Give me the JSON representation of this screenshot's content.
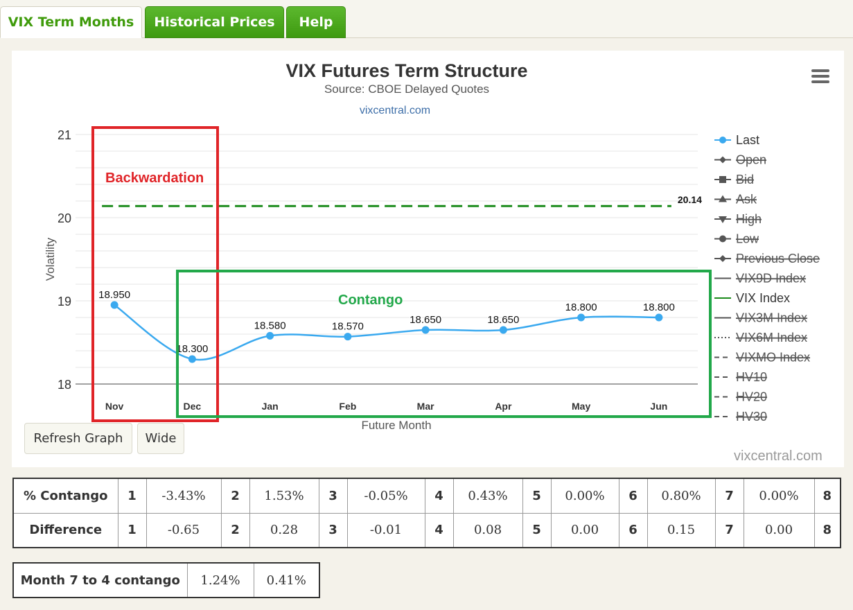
{
  "tabs": [
    {
      "label": "VIX Term Months"
    },
    {
      "label": "Historical Prices"
    },
    {
      "label": "Help"
    }
  ],
  "chart_data": {
    "type": "line",
    "title": "VIX Futures Term Structure",
    "subtitle": "Source: CBOE Delayed Quotes",
    "credit_top": "vixcentral.com",
    "credit_bottom": "vixcentral.com",
    "xlabel": "Future Month",
    "ylabel": "Volatility",
    "categories": [
      "Nov",
      "Dec",
      "Jan",
      "Feb",
      "Mar",
      "Apr",
      "May",
      "Jun"
    ],
    "ylim": [
      18,
      21
    ],
    "yticks": [
      "21",
      "20",
      "19",
      "18"
    ],
    "series": [
      {
        "name": "Last",
        "values": [
          18.95,
          18.3,
          18.58,
          18.57,
          18.65,
          18.65,
          18.8,
          18.8
        ],
        "labels": [
          "18.950",
          "18.300",
          "18.580",
          "18.570",
          "18.650",
          "18.650",
          "18.800",
          "18.800"
        ],
        "color": "#3aa9ef"
      },
      {
        "name": "VIX Index",
        "value": 20.14,
        "label": "20.14",
        "color": "#1a8a1a",
        "dashed": true
      }
    ],
    "legend_position": "right",
    "legend": [
      {
        "label": "Last",
        "active": true,
        "symbol": "dot-line",
        "color": "#3aa9ef"
      },
      {
        "label": "Open",
        "active": false,
        "symbol": "diamond"
      },
      {
        "label": "Bid",
        "active": false,
        "symbol": "square"
      },
      {
        "label": "Ask",
        "active": false,
        "symbol": "triangle-up"
      },
      {
        "label": "High",
        "active": false,
        "symbol": "triangle-down"
      },
      {
        "label": "Low",
        "active": false,
        "symbol": "circle"
      },
      {
        "label": "Previous Close",
        "active": false,
        "symbol": "diamond"
      },
      {
        "label": "VIX9D Index",
        "active": false,
        "symbol": "line"
      },
      {
        "label": "VIX Index",
        "active": true,
        "symbol": "line",
        "color": "#1a8a1a"
      },
      {
        "label": "VIX3M Index",
        "active": false,
        "symbol": "line"
      },
      {
        "label": "VIX6M Index",
        "active": false,
        "symbol": "dotted"
      },
      {
        "label": "VIXMO Index",
        "active": false,
        "symbol": "dashed"
      },
      {
        "label": "HV10",
        "active": false,
        "symbol": "dashed"
      },
      {
        "label": "HV20",
        "active": false,
        "symbol": "dashed"
      },
      {
        "label": "HV30",
        "active": false,
        "symbol": "dashed"
      }
    ],
    "annotations": [
      {
        "text": "Backwardation",
        "color": "#e02428"
      },
      {
        "text": "Contango",
        "color": "#22a84a"
      }
    ]
  },
  "buttons": {
    "refresh": "Refresh Graph",
    "wide": "Wide"
  },
  "contango_table": {
    "rows": [
      {
        "label": "% Contango",
        "cells": [
          [
            "1",
            "-3.43%"
          ],
          [
            "2",
            "1.53%"
          ],
          [
            "3",
            "-0.05%"
          ],
          [
            "4",
            "0.43%"
          ],
          [
            "5",
            "0.00%"
          ],
          [
            "6",
            "0.80%"
          ],
          [
            "7",
            "0.00%"
          ],
          [
            "8",
            ""
          ]
        ]
      },
      {
        "label": "Difference",
        "cells": [
          [
            "1",
            "-0.65"
          ],
          [
            "2",
            "0.28"
          ],
          [
            "3",
            "-0.01"
          ],
          [
            "4",
            "0.08"
          ],
          [
            "5",
            "0.00"
          ],
          [
            "6",
            "0.15"
          ],
          [
            "7",
            "0.00"
          ],
          [
            "8",
            ""
          ]
        ]
      }
    ]
  },
  "month_table": {
    "label": "Month 7 to 4 contango",
    "values": [
      "1.24%",
      "0.41%"
    ]
  }
}
